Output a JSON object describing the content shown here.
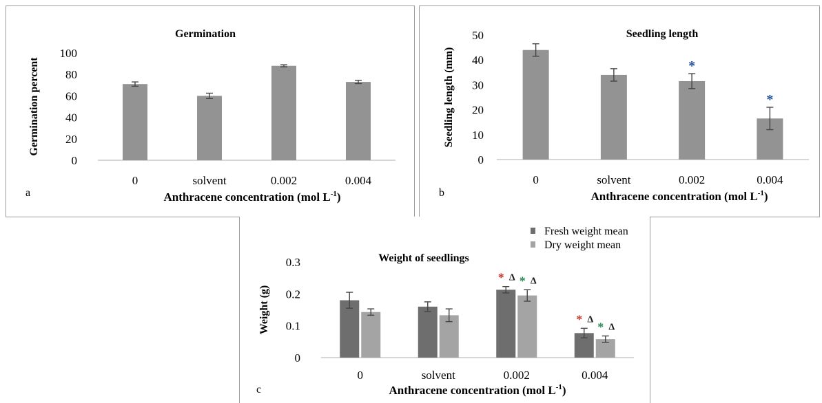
{
  "chart_data": [
    {
      "panel_label": "a",
      "type": "bar",
      "title": "Germination",
      "xlabel": "Anthracene concentration (mol L",
      "xlabel_superscript": "-1",
      "xlabel_suffix": ")",
      "ylabel": "Germination percent",
      "ylim": [
        0,
        100
      ],
      "yticks": [
        "0",
        "20",
        "40",
        "60",
        "80",
        "100"
      ],
      "categories": [
        "0",
        "solvent",
        "0.002",
        "0.004"
      ],
      "series": [
        {
          "values": [
            71,
            60,
            88,
            73
          ],
          "errors": [
            2,
            2.5,
            1,
            1.5
          ],
          "color": "#939393"
        }
      ],
      "grid": false
    },
    {
      "panel_label": "b",
      "type": "bar",
      "title": "Seedling length",
      "xlabel": "Anthracene concentration (mol L",
      "xlabel_superscript": "-1",
      "xlabel_suffix": ")",
      "ylabel": "Seedling length (mm)",
      "ylim": [
        0,
        50
      ],
      "yticks": [
        "0",
        "10",
        "20",
        "30",
        "40",
        "50"
      ],
      "categories": [
        "0",
        "solvent",
        "0.002",
        "0.004"
      ],
      "series": [
        {
          "values": [
            44,
            34,
            31.5,
            16.5
          ],
          "errors": [
            2.5,
            2.5,
            3,
            4.5
          ],
          "color": "#939393"
        }
      ],
      "annotations": [
        {
          "category": "0.002",
          "text": "*",
          "color": "#1f4e9a"
        },
        {
          "category": "0.004",
          "text": "*",
          "color": "#1f4e9a"
        }
      ],
      "grid": false
    },
    {
      "panel_label": "c",
      "type": "bar",
      "title": "Weight of seedlings",
      "xlabel": "Anthracene concentration (mol L",
      "xlabel_superscript": "-1",
      "xlabel_suffix": ")",
      "ylabel": "Weight (g)",
      "ylim": [
        0,
        0.3
      ],
      "yticks": [
        "0",
        "0.1",
        "0.2",
        "0.3"
      ],
      "categories": [
        "0",
        "solvent",
        "0.002",
        "0.004"
      ],
      "series": [
        {
          "name": "Fresh weight mean",
          "values": [
            0.18,
            0.16,
            0.213,
            0.077
          ],
          "errors": [
            0.025,
            0.015,
            0.01,
            0.015
          ],
          "color": "#6e6e6e"
        },
        {
          "name": "Dry weight mean",
          "values": [
            0.143,
            0.133,
            0.195,
            0.058
          ],
          "errors": [
            0.01,
            0.02,
            0.018,
            0.01
          ],
          "color": "#a4a4a4"
        }
      ],
      "annotations": [
        {
          "category": "0.002",
          "series": "Fresh weight mean",
          "star": "*",
          "star_color": "#c0392b",
          "delta": "Δ",
          "delta_color": "#1a1a1a"
        },
        {
          "category": "0.002",
          "series": "Dry weight mean",
          "star": "*",
          "star_color": "#2e8b57",
          "delta": "Δ",
          "delta_color": "#1a1a1a"
        },
        {
          "category": "0.004",
          "series": "Fresh weight mean",
          "star": "*",
          "star_color": "#c0392b",
          "delta": "Δ",
          "delta_color": "#1a1a1a"
        },
        {
          "category": "0.004",
          "series": "Dry weight mean",
          "star": "*",
          "star_color": "#2e8b57",
          "delta": "Δ",
          "delta_color": "#1a1a1a"
        }
      ],
      "legend_position": "top-right",
      "grid": false
    }
  ]
}
